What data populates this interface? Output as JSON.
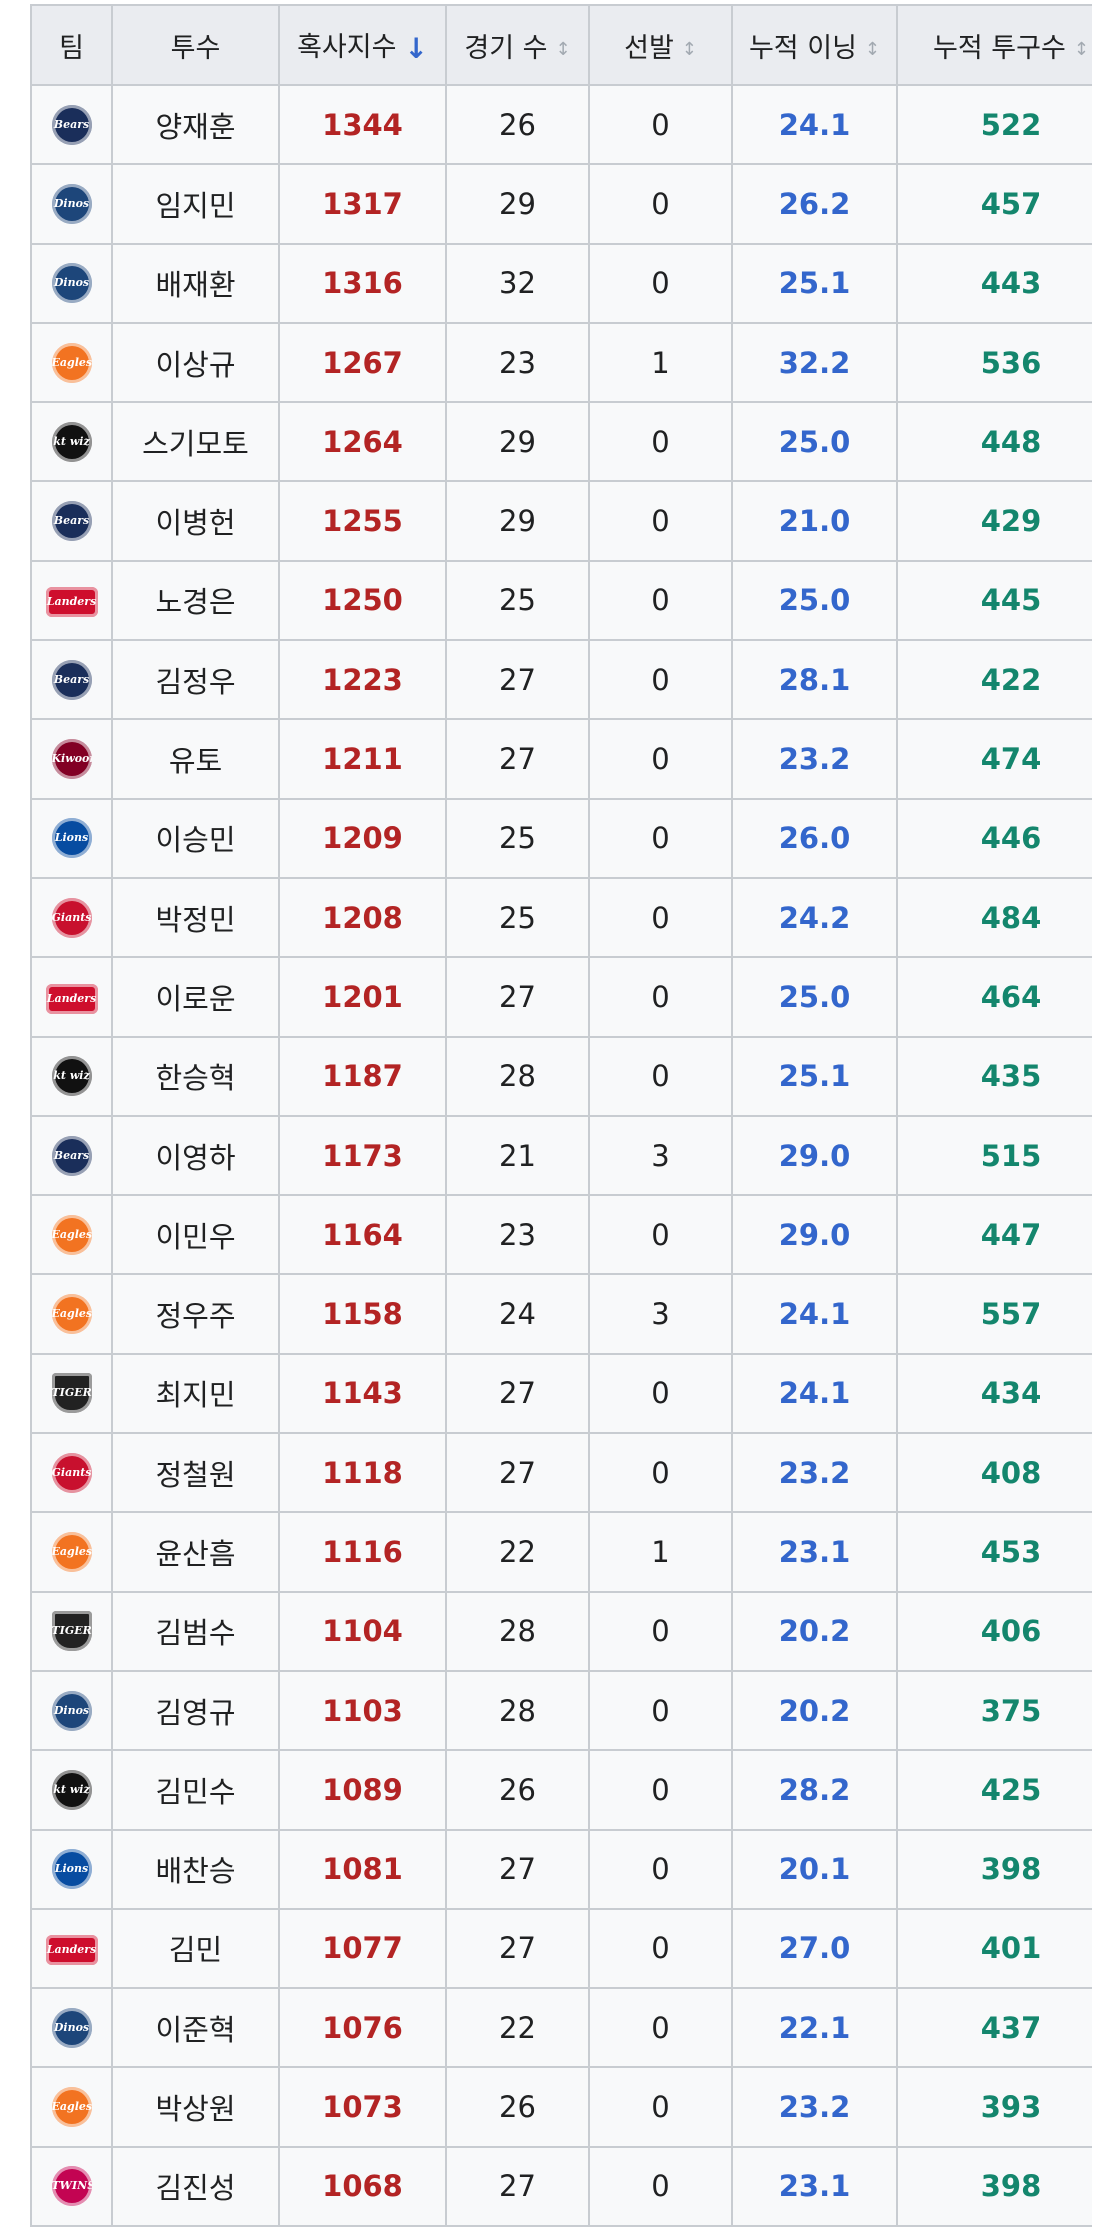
{
  "table": {
    "headers": {
      "team": "팀",
      "pitcher": "투수",
      "strikeout_index": "혹사지수",
      "games": "경기 수",
      "starts": "선발",
      "innings": "누적 이닝",
      "pitches": "누적 투구수"
    },
    "sort_icons": {
      "active": "↓",
      "inactive": "↕"
    },
    "rows": [
      {
        "team_logo": "bears-logo",
        "logo_text": "Bears",
        "logo_color": "#1a2e5a",
        "logo_shape": "circle",
        "pitcher": "양재훈",
        "index": "1344",
        "games": "26",
        "starts": "0",
        "innings": "24.1",
        "pitches": "522"
      },
      {
        "team_logo": "dinos-logo",
        "logo_text": "Dinos",
        "logo_color": "#1d467a",
        "logo_shape": "circle",
        "pitcher": "임지민",
        "index": "1317",
        "games": "29",
        "starts": "0",
        "innings": "26.2",
        "pitches": "457"
      },
      {
        "team_logo": "dinos-logo",
        "logo_text": "Dinos",
        "logo_color": "#1d467a",
        "logo_shape": "circle",
        "pitcher": "배재환",
        "index": "1316",
        "games": "32",
        "starts": "0",
        "innings": "25.1",
        "pitches": "443"
      },
      {
        "team_logo": "eagles-logo",
        "logo_text": "Eagles",
        "logo_color": "#f27321",
        "logo_shape": "circle",
        "pitcher": "이상규",
        "index": "1267",
        "games": "23",
        "starts": "1",
        "innings": "32.2",
        "pitches": "536"
      },
      {
        "team_logo": "ktwiz-logo",
        "logo_text": "kt wiz",
        "logo_color": "#111111",
        "logo_shape": "circle",
        "pitcher": "스기모토",
        "index": "1264",
        "games": "29",
        "starts": "0",
        "innings": "25.0",
        "pitches": "448"
      },
      {
        "team_logo": "bears-logo",
        "logo_text": "Bears",
        "logo_color": "#1a2e5a",
        "logo_shape": "circle",
        "pitcher": "이병헌",
        "index": "1255",
        "games": "29",
        "starts": "0",
        "innings": "21.0",
        "pitches": "429"
      },
      {
        "team_logo": "landers-logo",
        "logo_text": "Landers",
        "logo_color": "#ce0e2d",
        "logo_shape": "banner",
        "pitcher": "노경은",
        "index": "1250",
        "games": "25",
        "starts": "0",
        "innings": "25.0",
        "pitches": "445"
      },
      {
        "team_logo": "bears-logo",
        "logo_text": "Bears",
        "logo_color": "#1a2e5a",
        "logo_shape": "circle",
        "pitcher": "김정우",
        "index": "1223",
        "games": "27",
        "starts": "0",
        "innings": "28.1",
        "pitches": "422"
      },
      {
        "team_logo": "kiwoom-logo",
        "logo_text": "Kiwoom",
        "logo_color": "#820024",
        "logo_shape": "circle",
        "pitcher": "유토",
        "index": "1211",
        "games": "27",
        "starts": "0",
        "innings": "23.2",
        "pitches": "474"
      },
      {
        "team_logo": "lions-logo",
        "logo_text": "Lions",
        "logo_color": "#074ca1",
        "logo_shape": "circle",
        "pitcher": "이승민",
        "index": "1209",
        "games": "25",
        "starts": "0",
        "innings": "26.0",
        "pitches": "446"
      },
      {
        "team_logo": "giants-logo",
        "logo_text": "Giants",
        "logo_color": "#c8102e",
        "logo_shape": "circle",
        "pitcher": "박정민",
        "index": "1208",
        "games": "25",
        "starts": "0",
        "innings": "24.2",
        "pitches": "484"
      },
      {
        "team_logo": "landers-logo",
        "logo_text": "Landers",
        "logo_color": "#ce0e2d",
        "logo_shape": "banner",
        "pitcher": "이로운",
        "index": "1201",
        "games": "27",
        "starts": "0",
        "innings": "25.0",
        "pitches": "464"
      },
      {
        "team_logo": "ktwiz-logo",
        "logo_text": "kt wiz",
        "logo_color": "#111111",
        "logo_shape": "circle",
        "pitcher": "한승혁",
        "index": "1187",
        "games": "28",
        "starts": "0",
        "innings": "25.1",
        "pitches": "435"
      },
      {
        "team_logo": "bears-logo",
        "logo_text": "Bears",
        "logo_color": "#1a2e5a",
        "logo_shape": "circle",
        "pitcher": "이영하",
        "index": "1173",
        "games": "21",
        "starts": "3",
        "innings": "29.0",
        "pitches": "515"
      },
      {
        "team_logo": "eagles-logo",
        "logo_text": "Eagles",
        "logo_color": "#f27321",
        "logo_shape": "circle",
        "pitcher": "이민우",
        "index": "1164",
        "games": "23",
        "starts": "0",
        "innings": "29.0",
        "pitches": "447"
      },
      {
        "team_logo": "eagles-logo",
        "logo_text": "Eagles",
        "logo_color": "#f27321",
        "logo_shape": "circle",
        "pitcher": "정우주",
        "index": "1158",
        "games": "24",
        "starts": "3",
        "innings": "24.1",
        "pitches": "557"
      },
      {
        "team_logo": "tigers-logo",
        "logo_text": "TIGERS",
        "logo_color": "#222222",
        "logo_shape": "shield",
        "pitcher": "최지민",
        "index": "1143",
        "games": "27",
        "starts": "0",
        "innings": "24.1",
        "pitches": "434"
      },
      {
        "team_logo": "giants-logo",
        "logo_text": "Giants",
        "logo_color": "#c8102e",
        "logo_shape": "circle",
        "pitcher": "정철원",
        "index": "1118",
        "games": "27",
        "starts": "0",
        "innings": "23.2",
        "pitches": "408"
      },
      {
        "team_logo": "eagles-logo",
        "logo_text": "Eagles",
        "logo_color": "#f27321",
        "logo_shape": "circle",
        "pitcher": "윤산흠",
        "index": "1116",
        "games": "22",
        "starts": "1",
        "innings": "23.1",
        "pitches": "453"
      },
      {
        "team_logo": "tigers-logo",
        "logo_text": "TIGERS",
        "logo_color": "#222222",
        "logo_shape": "shield",
        "pitcher": "김범수",
        "index": "1104",
        "games": "28",
        "starts": "0",
        "innings": "20.2",
        "pitches": "406"
      },
      {
        "team_logo": "dinos-logo",
        "logo_text": "Dinos",
        "logo_color": "#1d467a",
        "logo_shape": "circle",
        "pitcher": "김영규",
        "index": "1103",
        "games": "28",
        "starts": "0",
        "innings": "20.2",
        "pitches": "375"
      },
      {
        "team_logo": "ktwiz-logo",
        "logo_text": "kt wiz",
        "logo_color": "#111111",
        "logo_shape": "circle",
        "pitcher": "김민수",
        "index": "1089",
        "games": "26",
        "starts": "0",
        "innings": "28.2",
        "pitches": "425"
      },
      {
        "team_logo": "lions-logo",
        "logo_text": "Lions",
        "logo_color": "#074ca1",
        "logo_shape": "circle",
        "pitcher": "배찬승",
        "index": "1081",
        "games": "27",
        "starts": "0",
        "innings": "20.1",
        "pitches": "398"
      },
      {
        "team_logo": "landers-logo",
        "logo_text": "Landers",
        "logo_color": "#ce0e2d",
        "logo_shape": "banner",
        "pitcher": "김민",
        "index": "1077",
        "games": "27",
        "starts": "0",
        "innings": "27.0",
        "pitches": "401"
      },
      {
        "team_logo": "dinos-logo",
        "logo_text": "Dinos",
        "logo_color": "#1d467a",
        "logo_shape": "circle",
        "pitcher": "이준혁",
        "index": "1076",
        "games": "22",
        "starts": "0",
        "innings": "22.1",
        "pitches": "437"
      },
      {
        "team_logo": "eagles-logo",
        "logo_text": "Eagles",
        "logo_color": "#f27321",
        "logo_shape": "circle",
        "pitcher": "박상원",
        "index": "1073",
        "games": "26",
        "starts": "0",
        "innings": "23.2",
        "pitches": "393"
      },
      {
        "team_logo": "twins-logo",
        "logo_text": "TWINS",
        "logo_color": "#c30452",
        "logo_shape": "circle",
        "pitcher": "김진성",
        "index": "1068",
        "games": "27",
        "starts": "0",
        "innings": "23.1",
        "pitches": "398"
      }
    ]
  },
  "colors": {
    "strikeout_index": "#b32424",
    "innings": "#3366cc",
    "pitches": "#14866d",
    "header_bg": "#eaecf0",
    "cell_bg": "#f8f9fa",
    "border": "#c8ccd1",
    "sort_active": "#3366cc"
  }
}
